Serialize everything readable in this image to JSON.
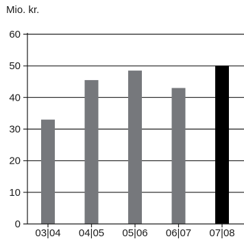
{
  "chart_data": {
    "type": "bar",
    "unit_label": "Mio. kr.",
    "categories": [
      "03|04",
      "04|05",
      "05|06",
      "06|07",
      "07|08"
    ],
    "values": [
      33,
      45.5,
      48.5,
      43,
      50
    ],
    "ylim": [
      0,
      60
    ],
    "yticks": [
      0,
      10,
      20,
      30,
      40,
      50,
      60
    ],
    "grid": true,
    "legend": "none",
    "colors": {
      "default_bar": "#76787c",
      "highlight_bar": "#000000",
      "axis": "#1a1a1a",
      "gridline": "#1a1a1a"
    },
    "highlight_index": 4
  }
}
